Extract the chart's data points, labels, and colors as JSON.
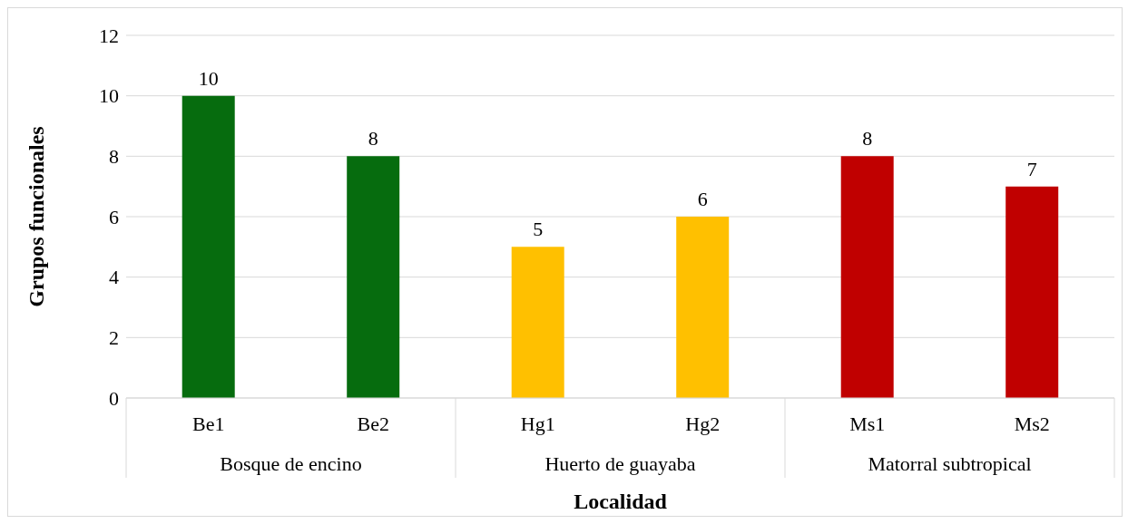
{
  "chart_data": {
    "type": "bar",
    "xlabel": "Localidad",
    "ylabel": "Grupos funcionales",
    "categories": [
      "Be1",
      "Be2",
      "Hg1",
      "Hg2",
      "Ms1",
      "Ms2"
    ],
    "values": [
      10,
      8,
      5,
      6,
      8,
      7
    ],
    "colors": [
      "#066c0e",
      "#066c0e",
      "#ffc000",
      "#ffc000",
      "#c00000",
      "#c00000"
    ],
    "ylim": [
      0,
      12
    ],
    "yticks": [
      0,
      2,
      4,
      6,
      8,
      10,
      12
    ],
    "grid": "y",
    "data_labels": true,
    "annotations": [
      "Bosque de encino",
      "Huerto de guayaba",
      "Matorral subtropical"
    ]
  }
}
